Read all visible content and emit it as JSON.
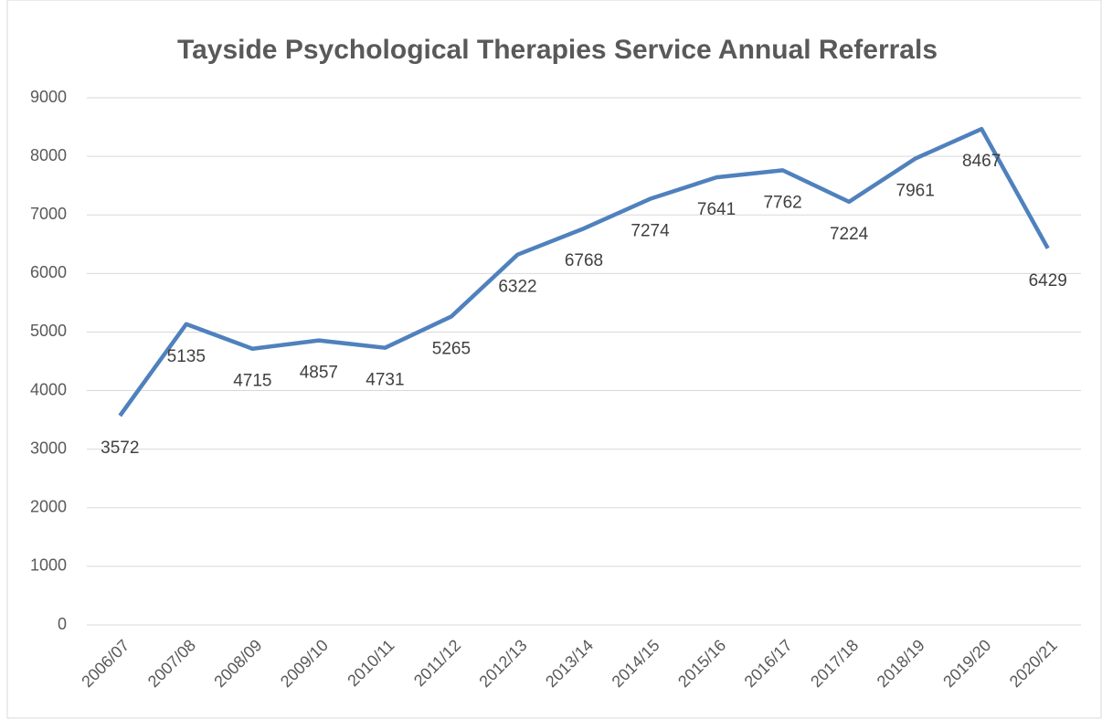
{
  "chart_data": {
    "type": "line",
    "title": "Tayside Psychological Therapies Service Annual Referrals",
    "categories": [
      "2006/07",
      "2007/08",
      "2008/09",
      "2009/10",
      "2010/11",
      "2011/12",
      "2012/13",
      "2013/14",
      "2014/15",
      "2015/16",
      "2016/17",
      "2017/18",
      "2018/19",
      "2019/20",
      "2020/21"
    ],
    "series": [
      {
        "name": "Annual Referrals",
        "color": "#4f81bd",
        "values": [
          3572,
          5135,
          4715,
          4857,
          4731,
          5265,
          6322,
          6768,
          7274,
          7641,
          7762,
          7224,
          7961,
          8467,
          6429
        ]
      }
    ],
    "ylim": [
      0,
      9000
    ],
    "yticks": [
      0,
      1000,
      2000,
      3000,
      4000,
      5000,
      6000,
      7000,
      8000,
      9000
    ],
    "grid": true
  }
}
